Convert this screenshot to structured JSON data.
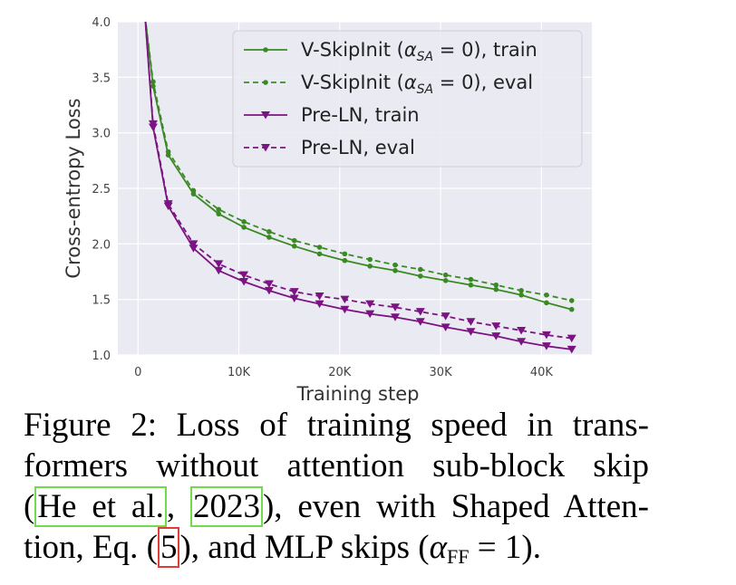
{
  "chart_data": {
    "type": "line",
    "xlabel": "Training step",
    "ylabel": "Cross-entropy Loss",
    "xlim": [
      -2000,
      45000
    ],
    "ylim": [
      1.0,
      4.0
    ],
    "xticks": [
      0,
      10000,
      20000,
      30000,
      40000
    ],
    "xtick_labels": [
      "0",
      "10K",
      "20K",
      "30K",
      "40K"
    ],
    "yticks": [
      1.0,
      1.5,
      2.0,
      2.5,
      3.0,
      3.5,
      4.0
    ],
    "ytick_labels": [
      "1.0",
      "1.5",
      "2.0",
      "2.5",
      "3.0",
      "3.5",
      "4.0"
    ],
    "grid": true,
    "legend_position": "top-right",
    "colors": {
      "green": "#3a8a23",
      "purple": "#7b1482",
      "background": "#eaeaf2",
      "grid": "#ffffff"
    },
    "series": [
      {
        "name": "V-SkipInit (α_SA = 0), train",
        "legend_main": "V-SkipInit (",
        "legend_alpha": "α",
        "legend_sub": "SA",
        "legend_rest": " = 0), train",
        "color": "#3a8a23",
        "dash": "solid",
        "marker": "circle",
        "x": [
          700,
          1500,
          3000,
          5500,
          8000,
          10500,
          13000,
          15500,
          18000,
          20500,
          23000,
          25500,
          28000,
          30500,
          33000,
          35500,
          38000,
          40500,
          43000
        ],
        "y": [
          4.05,
          3.42,
          2.8,
          2.45,
          2.27,
          2.15,
          2.06,
          1.98,
          1.91,
          1.85,
          1.8,
          1.76,
          1.71,
          1.67,
          1.63,
          1.59,
          1.54,
          1.47,
          1.41
        ]
      },
      {
        "name": "V-SkipInit (α_SA = 0), eval",
        "legend_main": "V-SkipInit (",
        "legend_alpha": "α",
        "legend_sub": "SA",
        "legend_rest": " = 0), eval",
        "color": "#3a8a23",
        "dash": "dashed",
        "marker": "circle",
        "x": [
          700,
          1500,
          3000,
          5500,
          8000,
          10500,
          13000,
          15500,
          18000,
          20500,
          23000,
          25500,
          28000,
          30500,
          33000,
          35500,
          38000,
          40500,
          43000
        ],
        "y": [
          4.05,
          3.46,
          2.83,
          2.48,
          2.31,
          2.2,
          2.11,
          2.03,
          1.97,
          1.91,
          1.86,
          1.81,
          1.77,
          1.72,
          1.68,
          1.63,
          1.58,
          1.54,
          1.49
        ]
      },
      {
        "name": "Pre-LN, train",
        "legend_main": "Pre-LN, train",
        "color": "#7b1482",
        "dash": "solid",
        "marker": "triangle-down",
        "x": [
          700,
          1500,
          3000,
          5500,
          8000,
          10500,
          13000,
          15500,
          18000,
          20500,
          23000,
          25500,
          28000,
          30500,
          33000,
          35500,
          38000,
          40500,
          43000
        ],
        "y": [
          4.05,
          3.05,
          2.34,
          1.96,
          1.76,
          1.66,
          1.58,
          1.51,
          1.46,
          1.41,
          1.37,
          1.34,
          1.3,
          1.25,
          1.21,
          1.17,
          1.12,
          1.08,
          1.05
        ]
      },
      {
        "name": "Pre-LN, eval",
        "legend_main": "Pre-LN, eval",
        "color": "#7b1482",
        "dash": "dashed",
        "marker": "triangle-down",
        "x": [
          700,
          1500,
          3000,
          5500,
          8000,
          10500,
          13000,
          15500,
          18000,
          20500,
          23000,
          25500,
          28000,
          30500,
          33000,
          35500,
          38000,
          40500,
          43000
        ],
        "y": [
          4.05,
          3.08,
          2.36,
          2.0,
          1.82,
          1.72,
          1.64,
          1.57,
          1.53,
          1.5,
          1.46,
          1.43,
          1.39,
          1.35,
          1.3,
          1.26,
          1.22,
          1.18,
          1.15
        ]
      }
    ]
  },
  "caption": {
    "line1": "Figure 2:  Loss of training speed in trans-",
    "line2": "formers without attention sub-block skip",
    "line3_open": "(",
    "cite_author": "He et al.",
    "line3_comma": ", ",
    "cite_year": "2023",
    "line3_rest": "), even with Shaped Atten-",
    "line4_pre": "tion, Eq. (",
    "eq_ref": "5",
    "line4_mid": "), and MLP skips (",
    "alpha": "α",
    "alpha_sub": "FF",
    "line4_end": " = 1)."
  }
}
